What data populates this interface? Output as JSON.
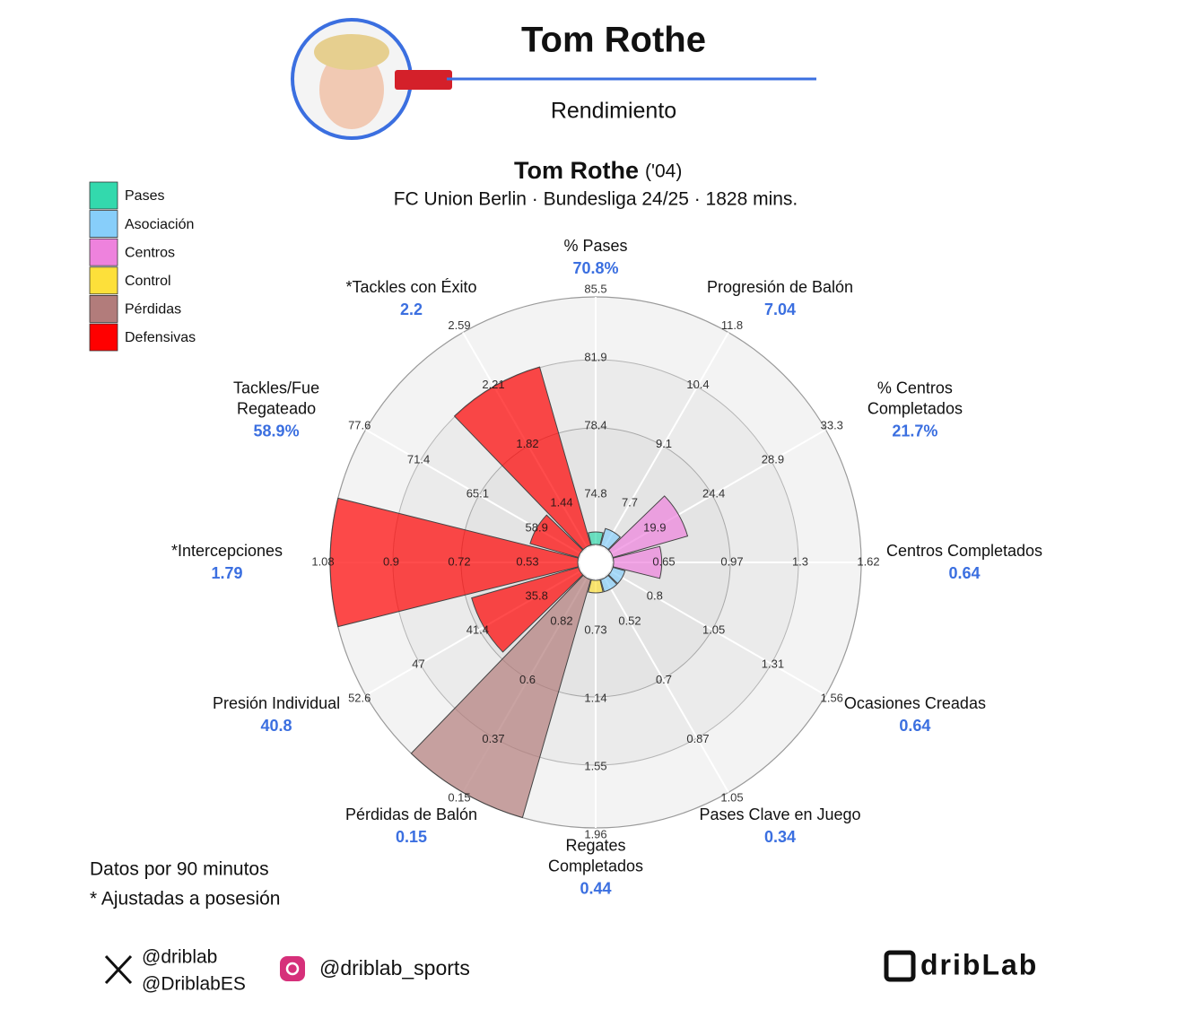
{
  "header": {
    "name": "Tom Rothe",
    "subtitle": "Rendimiento"
  },
  "chart_data": {
    "type": "polar_bar",
    "title": "Tom Rothe",
    "title_note": "('04)",
    "subtitle": "FC Union Berlin · Bundesliga 24/25 · 1828 mins.",
    "categories": [
      "% Pases",
      "Progresión de Balón",
      "% Centros\nCompletados",
      "Centros Completados",
      "Ocasiones Creadas",
      "Pases Clave en Juego",
      "Regates\nCompletados",
      "Pérdidas de Balón",
      "Presión Individual",
      "*Intercepciones",
      "Tackles/Fue\nRegateado",
      "*Tackles con Éxito"
    ],
    "values": [
      70.8,
      7.04,
      21.7,
      0.64,
      0.64,
      0.34,
      0.44,
      0.15,
      40.8,
      1.79,
      58.9,
      2.2
    ],
    "value_labels": [
      "70.8%",
      "7.04",
      "21.7%",
      "0.64",
      "0.64",
      "0.34",
      "0.44",
      "0.15",
      "40.8",
      "1.79",
      "58.9%",
      "2.2"
    ],
    "category_group": [
      0,
      1,
      2,
      2,
      1,
      1,
      3,
      4,
      5,
      5,
      5,
      5
    ],
    "ticks": [
      [
        74.8,
        78.4,
        81.9,
        85.5
      ],
      [
        7.7,
        9.1,
        10.4,
        11.8
      ],
      [
        19.9,
        24.4,
        28.9,
        33.3
      ],
      [
        0.65,
        0.97,
        1.3,
        1.62
      ],
      [
        0.8,
        1.05,
        1.31,
        1.56
      ],
      [
        0.52,
        0.7,
        0.87,
        1.05
      ],
      [
        0.73,
        1.14,
        1.55,
        1.96
      ],
      [
        0.82,
        0.6,
        0.37,
        0.15
      ],
      [
        35.8,
        41.4,
        47,
        52.6
      ],
      [
        0.53,
        0.72,
        0.9,
        1.08
      ],
      [
        58.9,
        65.1,
        71.4,
        77.6
      ],
      [
        1.44,
        1.82,
        2.21,
        2.59
      ]
    ],
    "legend": [
      {
        "name": "Pases",
        "color": "#33d9ad"
      },
      {
        "name": "Asociación",
        "color": "#87cefa"
      },
      {
        "name": "Centros",
        "color": "#ee82dd"
      },
      {
        "name": "Control",
        "color": "#fde03a"
      },
      {
        "name": "Pérdidas",
        "color": "#b27c7b"
      },
      {
        "name": "Defensivas",
        "color": "#ff0000"
      }
    ]
  },
  "notes": [
    "Datos por 90 minutos",
    "* Ajustadas a posesión"
  ],
  "footer": {
    "x_handles": [
      "@driblab",
      "@DriblabES"
    ],
    "instagram": "@driblab_sports",
    "brand": "dribLab"
  }
}
